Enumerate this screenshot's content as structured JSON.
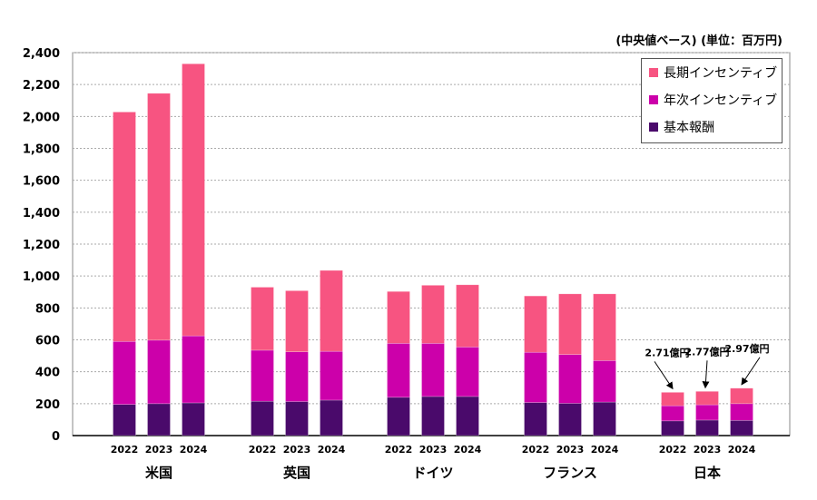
{
  "chart_data": {
    "type": "bar",
    "stacked": true,
    "unit_note": "(中央値ベース) (単位：百万円)",
    "groups": [
      "米国",
      "英国",
      "ドイツ",
      "フランス",
      "日本"
    ],
    "years": [
      "2022",
      "2023",
      "2024"
    ],
    "series": [
      {
        "name": "基本報酬",
        "color": "#4a0a6b",
        "values": [
          [
            195,
            200,
            205
          ],
          [
            215,
            213,
            222
          ],
          [
            240,
            245,
            245
          ],
          [
            207,
            202,
            210
          ],
          [
            92,
            97,
            95
          ]
        ]
      },
      {
        "name": "年次インセンティブ",
        "color": "#cc00aa",
        "values": [
          [
            395,
            398,
            420
          ],
          [
            320,
            312,
            306
          ],
          [
            338,
            333,
            310
          ],
          [
            315,
            306,
            260
          ],
          [
            95,
            96,
            105
          ]
        ]
      },
      {
        "name": "長期インセンティブ",
        "color": "#f75481",
        "values": [
          [
            1438,
            1547,
            1705
          ],
          [
            395,
            383,
            507
          ],
          [
            325,
            364,
            390
          ],
          [
            353,
            380,
            418
          ],
          [
            84,
            84,
            97
          ]
        ]
      }
    ],
    "legend_order": [
      "長期インセンティブ",
      "年次インセンティブ",
      "基本報酬"
    ],
    "legend_position": "top-right",
    "annotations": [
      {
        "group": "日本",
        "year": "2022",
        "text": "2.71億円"
      },
      {
        "group": "日本",
        "year": "2023",
        "text": "2.77億円"
      },
      {
        "group": "日本",
        "year": "2024",
        "text": "2.97億円"
      }
    ],
    "ylim": [
      0,
      2400
    ],
    "yticks": [
      "0",
      "200",
      "400",
      "600",
      "800",
      "1,000",
      "1,200",
      "1,400",
      "1,600",
      "1,800",
      "2,000",
      "2,200",
      "2,400"
    ],
    "grid": true
  }
}
